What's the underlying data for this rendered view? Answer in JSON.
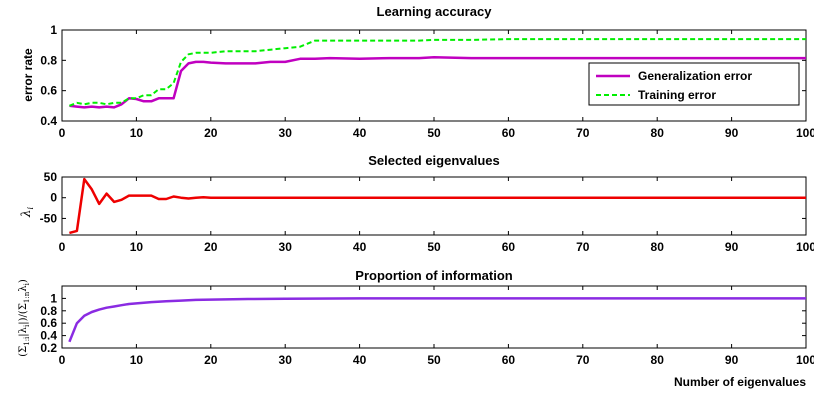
{
  "chart_data": [
    {
      "type": "line",
      "title": "Learning accuracy",
      "xlabel": "",
      "ylabel": "error rate",
      "xlim": [
        0,
        100
      ],
      "ylim": [
        0.4,
        1.0
      ],
      "xticks": [
        0,
        10,
        20,
        30,
        40,
        50,
        60,
        70,
        80,
        90,
        100
      ],
      "yticks": [
        0.4,
        0.6,
        0.8,
        1
      ],
      "legend_position": "right",
      "series": [
        {
          "name": "Generalization error",
          "color": "#c000c0",
          "style": "solid",
          "x": [
            1,
            2,
            3,
            4,
            5,
            6,
            7,
            8,
            9,
            10,
            11,
            12,
            13,
            14,
            15,
            16,
            17,
            18,
            19,
            20,
            22,
            24,
            26,
            28,
            30,
            32,
            34,
            36,
            40,
            44,
            48,
            50,
            55,
            60,
            65,
            70,
            75,
            80,
            85,
            90,
            95,
            100
          ],
          "y": [
            0.5,
            0.495,
            0.49,
            0.495,
            0.49,
            0.495,
            0.49,
            0.51,
            0.55,
            0.545,
            0.53,
            0.53,
            0.55,
            0.55,
            0.55,
            0.73,
            0.78,
            0.79,
            0.79,
            0.785,
            0.78,
            0.78,
            0.78,
            0.79,
            0.79,
            0.81,
            0.81,
            0.815,
            0.81,
            0.815,
            0.815,
            0.82,
            0.815,
            0.815,
            0.815,
            0.815,
            0.815,
            0.815,
            0.815,
            0.815,
            0.815,
            0.815
          ]
        },
        {
          "name": "Training error",
          "color": "#00ee00",
          "style": "dashed",
          "x": [
            1,
            2,
            3,
            4,
            5,
            6,
            7,
            8,
            9,
            10,
            11,
            12,
            13,
            14,
            15,
            16,
            17,
            18,
            19,
            20,
            22,
            24,
            26,
            28,
            30,
            32,
            34,
            36,
            40,
            44,
            48,
            50,
            55,
            60,
            65,
            70,
            75,
            80,
            85,
            90,
            95,
            100
          ],
          "y": [
            0.5,
            0.52,
            0.51,
            0.52,
            0.52,
            0.51,
            0.52,
            0.52,
            0.55,
            0.55,
            0.57,
            0.57,
            0.61,
            0.61,
            0.65,
            0.79,
            0.84,
            0.85,
            0.85,
            0.85,
            0.86,
            0.86,
            0.86,
            0.87,
            0.88,
            0.89,
            0.93,
            0.93,
            0.93,
            0.93,
            0.93,
            0.935,
            0.935,
            0.94,
            0.94,
            0.94,
            0.94,
            0.94,
            0.94,
            0.94,
            0.94,
            0.94
          ]
        }
      ]
    },
    {
      "type": "line",
      "title": "Selected eigenvalues",
      "xlabel": "",
      "ylabel": "λi",
      "xlim": [
        0,
        100
      ],
      "ylim": [
        -90,
        50
      ],
      "xticks": [
        0,
        10,
        20,
        30,
        40,
        50,
        60,
        70,
        80,
        90,
        100
      ],
      "yticks": [
        -50,
        0,
        50
      ],
      "series": [
        {
          "color": "#ee0000",
          "style": "solid",
          "x": [
            1,
            2,
            3,
            4,
            5,
            6,
            7,
            8,
            9,
            10,
            11,
            12,
            13,
            14,
            15,
            16,
            17,
            18,
            19,
            20,
            22,
            25,
            30,
            40,
            50,
            60,
            70,
            80,
            90,
            100
          ],
          "y": [
            -85,
            -80,
            45,
            20,
            -15,
            10,
            -10,
            -5,
            5,
            5,
            5,
            5,
            -3,
            -3,
            3,
            0,
            -2,
            0,
            1,
            0,
            0,
            0,
            0,
            0,
            0,
            0,
            0,
            0,
            0,
            0
          ]
        }
      ]
    },
    {
      "type": "line",
      "title": "Proportion of information",
      "xlabel": "Number of eigenvalues",
      "ylabel": "(Σ1:i |λi|)/(Σ1:n λi)",
      "xlim": [
        0,
        100
      ],
      "ylim": [
        0.2,
        1.2
      ],
      "xticks": [
        0,
        10,
        20,
        30,
        40,
        50,
        60,
        70,
        80,
        90,
        100
      ],
      "yticks": [
        0.2,
        0.4,
        0.6,
        0.8,
        1
      ],
      "series": [
        {
          "color": "#8a2be2",
          "style": "solid",
          "x": [
            1,
            2,
            3,
            4,
            5,
            6,
            7,
            8,
            9,
            10,
            12,
            14,
            16,
            18,
            20,
            25,
            30,
            40,
            50,
            60,
            70,
            80,
            90,
            100
          ],
          "y": [
            0.3,
            0.6,
            0.72,
            0.78,
            0.82,
            0.85,
            0.87,
            0.89,
            0.91,
            0.92,
            0.94,
            0.955,
            0.965,
            0.975,
            0.98,
            0.99,
            0.995,
            1.0,
            1.0,
            1.0,
            1.0,
            1.0,
            1.0,
            1.0
          ]
        }
      ]
    }
  ],
  "panels": [
    {
      "title": "Learning accuracy",
      "ylabel": "error rate"
    },
    {
      "title": "Selected eigenvalues"
    },
    {
      "title": "Proportion of information",
      "xlabel": "Number of eigenvalues"
    }
  ],
  "legend": {
    "items": [
      "Generalization error",
      "Training error"
    ]
  }
}
